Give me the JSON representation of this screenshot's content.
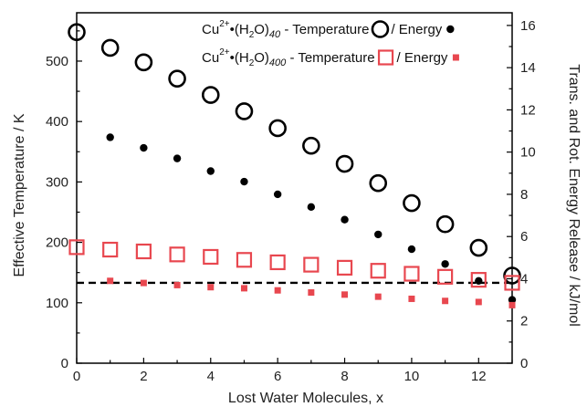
{
  "chart_data": {
    "type": "scatter",
    "xlabel": "Lost Water Molecules, x",
    "ylabel": "Effective Temperature / K",
    "y2label": "Trans. and Rot. Energy Release / kJ/mol",
    "xlim": [
      0,
      13
    ],
    "ylim": [
      0,
      580
    ],
    "y2lim": [
      0,
      16.6
    ],
    "xticks": [
      0,
      2,
      4,
      6,
      8,
      10,
      12
    ],
    "yticks": [
      0,
      100,
      200,
      300,
      400,
      500
    ],
    "y2ticks": [
      0,
      2,
      4,
      6,
      8,
      10,
      12,
      14,
      16
    ],
    "reference_line": {
      "y": 133,
      "style": "dashed",
      "color": "#000000"
    },
    "legend": {
      "placement": "top-right",
      "rows": [
        {
          "prefix": "Cu",
          "sup": "2+",
          "mid": "•(H",
          "sub2": "2",
          "mid2": "O)",
          "sub": "40",
          "temperature_text": " - Temperature",
          "energy_text": "/ Energy",
          "color": "#000000"
        },
        {
          "prefix": "Cu",
          "sup": "2+",
          "mid": "•(H",
          "sub2": "2",
          "mid2": "O)",
          "sub": "400",
          "temperature_text": " - Temperature",
          "energy_text": " / Energy",
          "color": "#e8474f"
        }
      ]
    },
    "series": [
      {
        "name": "Cu2+•(H2O)40 - Temperature",
        "axis": "left",
        "marker": "open-circle",
        "color": "#000000",
        "x": [
          0,
          1,
          2,
          3,
          4,
          5,
          6,
          7,
          8,
          9,
          10,
          11,
          12,
          13
        ],
        "y": [
          548,
          522,
          498,
          471,
          444,
          417,
          389,
          360,
          330,
          298,
          265,
          230,
          191,
          145
        ]
      },
      {
        "name": "Cu2+•(H2O)40 - Energy",
        "axis": "right",
        "marker": "filled-circle",
        "color": "#000000",
        "x": [
          1,
          2,
          3,
          4,
          5,
          6,
          7,
          8,
          9,
          10,
          11,
          12,
          13
        ],
        "y": [
          10.7,
          10.2,
          9.7,
          9.1,
          8.6,
          8.0,
          7.4,
          6.8,
          6.1,
          5.4,
          4.7,
          3.9,
          3.0
        ]
      },
      {
        "name": "Cu2+•(H2O)400 - Temperature",
        "axis": "left",
        "marker": "open-square",
        "color": "#e8474f",
        "x": [
          0,
          1,
          2,
          3,
          4,
          5,
          6,
          7,
          8,
          9,
          10,
          11,
          12,
          13
        ],
        "y": [
          192,
          188,
          185,
          180,
          176,
          171,
          167,
          163,
          158,
          153,
          148,
          143,
          138,
          133
        ]
      },
      {
        "name": "Cu2+•(H2O)400 - Energy",
        "axis": "right",
        "marker": "filled-square",
        "color": "#e8474f",
        "x": [
          1,
          2,
          3,
          4,
          5,
          6,
          7,
          8,
          9,
          10,
          11,
          12,
          13
        ],
        "y": [
          3.9,
          3.8,
          3.7,
          3.6,
          3.55,
          3.45,
          3.35,
          3.25,
          3.15,
          3.05,
          2.95,
          2.9,
          2.75
        ]
      }
    ]
  }
}
